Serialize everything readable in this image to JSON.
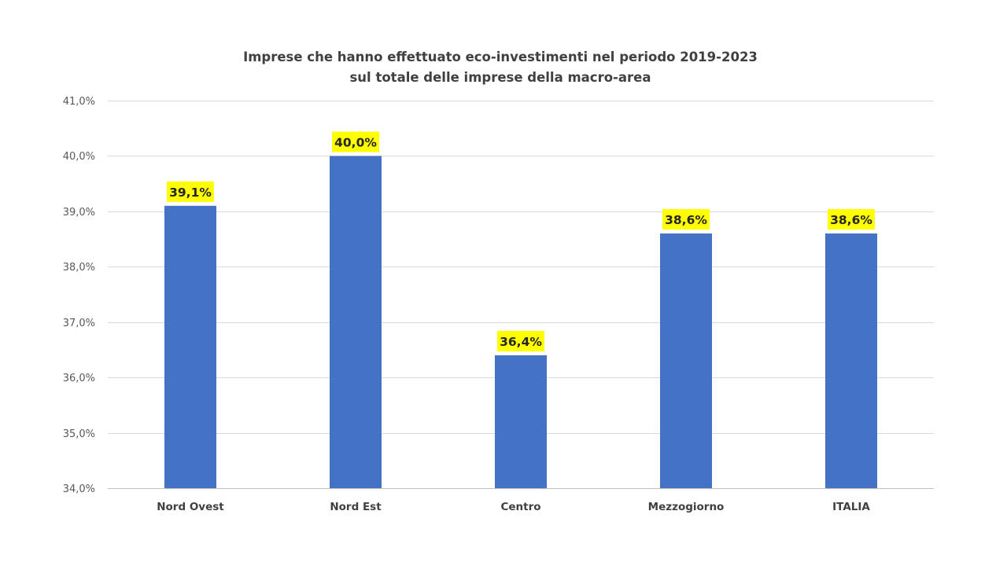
{
  "chart_data": {
    "type": "bar",
    "title_lines": [
      "Imprese che hanno effettuato eco-investimenti nel periodo 2019-2023",
      "sul totale delle imprese della macro-area"
    ],
    "categories": [
      "Nord Ovest",
      "Nord Est",
      "Centro",
      "Mezzogiorno",
      "ITALIA"
    ],
    "values": [
      39.1,
      40.0,
      36.4,
      38.6,
      38.6
    ],
    "data_labels": [
      "39,1%",
      "40,0%",
      "36,4%",
      "38,6%",
      "38,6%"
    ],
    "ylim": [
      34.0,
      41.0
    ],
    "yticks": [
      34.0,
      35.0,
      36.0,
      37.0,
      38.0,
      39.0,
      40.0,
      41.0
    ],
    "ytick_labels": [
      "34,0%",
      "35,0%",
      "36,0%",
      "37,0%",
      "38,0%",
      "39,0%",
      "40,0%",
      "41,0%"
    ],
    "xlabel": "",
    "ylabel": "",
    "grid": true,
    "legend": "none",
    "colors": {
      "bar": "#4472C4",
      "label_highlight": "#FFFF00",
      "gridline": "#D9D9D9",
      "axis": "#BFBFBF"
    }
  }
}
